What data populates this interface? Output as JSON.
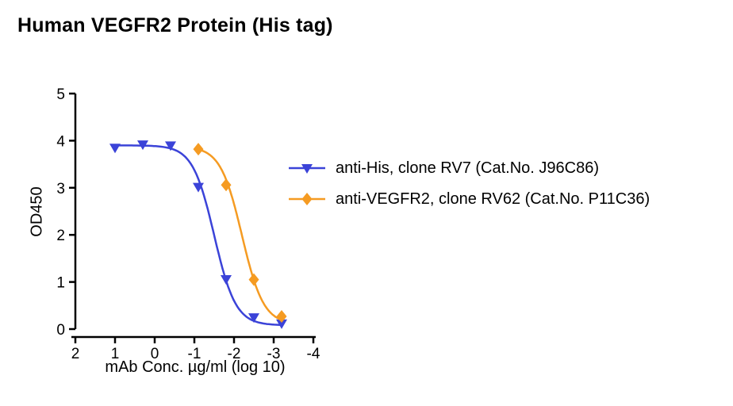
{
  "title": "Human VEGFR2 Protein (His tag)",
  "chart_data": {
    "type": "scatter",
    "title": "Human VEGFR2 Protein (His tag)",
    "xlabel": "mAb Conc. µg/ml (log 10)",
    "ylabel": "OD450",
    "x_ticks": [
      2,
      1,
      0,
      -1,
      -2,
      -3,
      -4
    ],
    "y_ticks": [
      0,
      1,
      2,
      3,
      4,
      5
    ],
    "x_axis_reversed": true,
    "xlim": [
      2,
      -4
    ],
    "ylim": [
      0,
      5
    ],
    "grid": false,
    "legend_position": "right of plot, middle",
    "series": [
      {
        "name": "anti-His, clone RV7 (Cat.No. J96C86)",
        "color": "#3b43d8",
        "marker": "triangle-down",
        "x": [
          1.0,
          0.3,
          -0.4,
          -1.1,
          -1.8,
          -2.5,
          -3.2
        ],
        "y": [
          3.85,
          3.92,
          3.9,
          3.02,
          1.06,
          0.25,
          0.12
        ],
        "fit": {
          "top": 3.9,
          "bottom": 0.08,
          "logIC50": -1.5,
          "hill": 1.6,
          "curve_x_range": [
            1.0,
            -3.2
          ]
        }
      },
      {
        "name": "anti-VEGFR2, clone RV62 (Cat.No. P11C36)",
        "color": "#f59b22",
        "marker": "diamond",
        "x": [
          -1.1,
          -1.8,
          -2.5,
          -3.2
        ],
        "y": [
          3.82,
          3.06,
          1.05,
          0.27
        ],
        "fit": {
          "top": 3.88,
          "bottom": 0.1,
          "logIC50": -2.2,
          "hill": 1.6,
          "curve_x_range": [
            -1.12,
            -3.2
          ]
        }
      }
    ]
  }
}
